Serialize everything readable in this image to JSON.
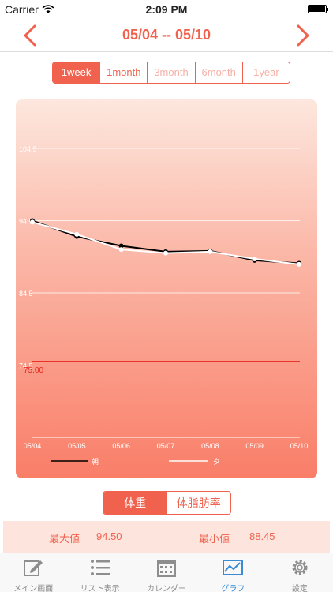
{
  "status_bar": {
    "carrier": "Carrier",
    "time": "2:09 PM"
  },
  "nav": {
    "title": "05/04 -- 05/10"
  },
  "period_tabs": [
    {
      "label": "1week",
      "state": "active"
    },
    {
      "label": "1month",
      "state": "enabled"
    },
    {
      "label": "3month",
      "state": "disabled"
    },
    {
      "label": "6month",
      "state": "disabled"
    },
    {
      "label": "1year",
      "state": "disabled"
    }
  ],
  "chart_data": {
    "type": "line",
    "categories": [
      "05/04",
      "05/05",
      "05/06",
      "05/07",
      "05/08",
      "05/09",
      "05/10"
    ],
    "y_ticks": [
      {
        "label": "104.5",
        "value": 104.5
      },
      {
        "label": "94.5",
        "value": 94.5
      },
      {
        "label": "84.5",
        "value": 84.5
      },
      {
        "label": "74.5",
        "value": 74.5
      }
    ],
    "ylim": [
      64.5,
      104.5
    ],
    "grid": true,
    "legend_position": "bottom",
    "series": [
      {
        "name": "朝",
        "color": "#000000",
        "values": [
          94.5,
          92.3,
          91.0,
          90.2,
          90.3,
          89.0,
          88.6
        ]
      },
      {
        "name": "夕",
        "color": "#ffffff",
        "values": [
          94.3,
          92.6,
          90.5,
          90.0,
          90.2,
          89.2,
          88.45
        ]
      }
    ],
    "target_line": {
      "label": "75.00",
      "value": 75.0,
      "color": "#e8241b"
    }
  },
  "body_tabs": [
    {
      "label": "体重",
      "state": "active"
    },
    {
      "label": "体脂肪率",
      "state": "enabled"
    }
  ],
  "stats": {
    "max_label": "最大値",
    "max_value": "94.50",
    "min_label": "最小値",
    "min_value": "88.45"
  },
  "tabbar": [
    {
      "label": "メイン画面",
      "icon": "edit-icon",
      "active": false
    },
    {
      "label": "リスト表示",
      "icon": "list-icon",
      "active": false
    },
    {
      "label": "カレンダー",
      "icon": "calendar-icon",
      "active": false
    },
    {
      "label": "グラフ",
      "icon": "graph-icon",
      "active": true
    },
    {
      "label": "設定",
      "icon": "gear-icon",
      "active": false
    }
  ],
  "colors": {
    "accent": "#f0624e",
    "tab_active": "#3a8bd6"
  }
}
